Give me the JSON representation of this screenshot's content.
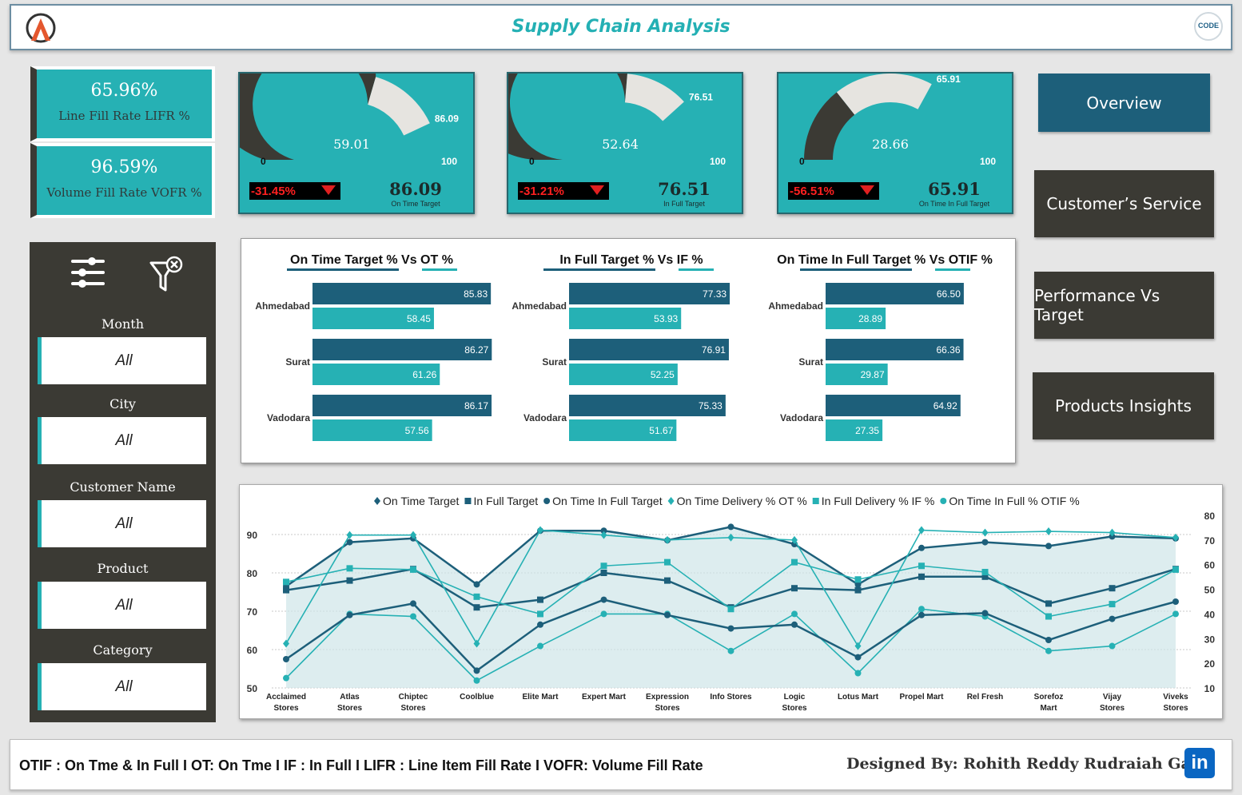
{
  "header": {
    "title": "Supply Chain Analysis",
    "right_logo_text": "CODE"
  },
  "kpis": [
    {
      "value": "65.96%",
      "label": "Line Fill Rate LIFR %"
    },
    {
      "value": "96.59%",
      "label": "Volume Fill Rate VOFR %"
    }
  ],
  "gauges": [
    {
      "value": 59.01,
      "value_text": "59.01",
      "target": 86.09,
      "target_text": "86.09",
      "min_text": "0",
      "max_text": "100",
      "delta": "-31.45%",
      "target_label": "On Time Target"
    },
    {
      "value": 52.64,
      "value_text": "52.64",
      "target": 76.51,
      "target_text": "76.51",
      "min_text": "0",
      "max_text": "100",
      "delta": "-31.21%",
      "target_label": "In Full Target"
    },
    {
      "value": 28.66,
      "value_text": "28.66",
      "target": 65.91,
      "target_text": "65.91",
      "min_text": "0",
      "max_text": "100",
      "delta": "-56.51%",
      "target_label": "On Time In Full Target"
    }
  ],
  "nav": {
    "overview": "Overview",
    "customer_service": "Customer’s Service",
    "performance": "Performance Vs Target",
    "products": "Products Insights"
  },
  "slicers": [
    {
      "label": "Month",
      "value": "All"
    },
    {
      "label": "City",
      "value": "All"
    },
    {
      "label": "Customer Name",
      "value": "All"
    },
    {
      "label": "Product",
      "value": "All"
    },
    {
      "label": "Category",
      "value": "All"
    }
  ],
  "colors": {
    "teal": "#26b1b4",
    "navy": "#1d5f7a",
    "dark": "#3b3a34",
    "panel": "#e6e4e0"
  },
  "chart_data": [
    {
      "type": "bar",
      "title": "On Time Target % Vs OT %",
      "categories": [
        "Ahmedabad",
        "Surat",
        "Vadodara"
      ],
      "series": [
        {
          "values": [
            85.83,
            86.27,
            86.17
          ],
          "labels": [
            "85.83",
            "86.27",
            "86.17"
          ]
        },
        {
          "values": [
            58.45,
            61.26,
            57.56
          ],
          "labels": [
            "58.45",
            "61.26",
            "57.56"
          ]
        }
      ]
    },
    {
      "type": "bar",
      "title": "In Full Target % Vs IF %",
      "categories": [
        "Ahmedabad",
        "Surat",
        "Vadodara"
      ],
      "series": [
        {
          "values": [
            77.33,
            76.91,
            75.33
          ],
          "labels": [
            "77.33",
            "76.91",
            "75.33"
          ]
        },
        {
          "values": [
            53.93,
            52.25,
            51.67
          ],
          "labels": [
            "53.93",
            "52.25",
            "51.67"
          ]
        }
      ]
    },
    {
      "type": "bar",
      "title": "On Time In Full Target % Vs OTIF %",
      "categories": [
        "Ahmedabad",
        "Surat",
        "Vadodara"
      ],
      "series": [
        {
          "values": [
            66.5,
            66.36,
            64.92
          ],
          "labels": [
            "66.50",
            "66.36",
            "64.92"
          ]
        },
        {
          "values": [
            28.89,
            29.87,
            27.35
          ],
          "labels": [
            "28.89",
            "29.87",
            "27.35"
          ]
        }
      ]
    },
    {
      "type": "line",
      "categories": [
        "Acclaimed Stores",
        "Atlas Stores",
        "Chiptec Stores",
        "Coolblue",
        "Elite Mart",
        "Expert Mart",
        "Expression Stores",
        "Info Stores",
        "Logic Stores",
        "Lotus Mart",
        "Propel Mart",
        "Rel Fresh",
        "Sorefoz Mart",
        "Vijay Stores",
        "Viveks Stores"
      ],
      "y_left": {
        "ticks": [
          "50",
          "60",
          "70",
          "80",
          "90"
        ],
        "min": 50,
        "max": 95
      },
      "y_right": {
        "ticks": [
          "10",
          "20",
          "30",
          "40",
          "50",
          "60",
          "70",
          "80"
        ],
        "min": 10,
        "max": 80
      },
      "series": [
        {
          "name": "On Time Target",
          "axis": "left",
          "marker": "diamond",
          "color": "#1d5f7a",
          "values": [
            null,
            null,
            null,
            null,
            null,
            null,
            null,
            null,
            null,
            null,
            null,
            null,
            null,
            null,
            null
          ]
        },
        {
          "name": "In Full Target",
          "axis": "left",
          "marker": "square",
          "color": "#1d5f7a",
          "values": [
            75.5,
            78,
            81,
            71,
            73,
            80,
            78,
            71,
            76,
            75.5,
            79,
            79,
            72,
            76,
            81
          ]
        },
        {
          "name": "On Time In Full Target",
          "axis": "left",
          "marker": "circle",
          "color": "#1d5f7a",
          "fill": "#cfe5e8",
          "values": [
            76.5,
            88,
            89,
            77,
            91,
            91,
            88.5,
            92,
            87.5,
            77,
            86.5,
            88,
            87,
            89.5,
            89
          ]
        },
        {
          "name": "On Time Delivery % OT %",
          "axis": "right",
          "marker": "diamond",
          "color": "#26b1b4",
          "values": [
            28,
            72,
            72,
            28,
            74,
            72,
            70,
            71,
            70,
            27,
            74,
            73,
            73.5,
            73,
            71
          ]
        },
        {
          "name": "In Full Delivery % IF %",
          "axis": "right",
          "marker": "square",
          "color": "#26b1b4",
          "values": [
            53,
            58.5,
            58,
            47,
            40,
            59.5,
            61,
            42,
            61,
            54,
            59.5,
            57,
            39,
            44,
            58
          ]
        },
        {
          "name": "On Time In Full % OTIF %",
          "axis": "right",
          "marker": "circle",
          "color": "#26b1b4",
          "values": [
            14,
            40,
            39,
            13,
            27,
            40,
            40,
            25,
            40,
            16,
            42,
            39,
            25,
            27,
            40
          ]
        },
        {
          "name": "",
          "axis": "left",
          "marker": "circle",
          "color": "#1d5f7a",
          "values": [
            57.5,
            69,
            72,
            54.5,
            66.5,
            73,
            69,
            65.5,
            66.5,
            58,
            69,
            69.5,
            62.5,
            68,
            72.5
          ]
        }
      ]
    }
  ],
  "footer": {
    "notes": "OTIF : On Tme & In Full I OT: On Tme I IF : In Full I LIFR : Line Item Fill Rate I VOFR: Volume Fill Rate",
    "designer": "Designed By: Rohith Reddy Rudraiah Gari",
    "linkedin_icon": "in"
  }
}
